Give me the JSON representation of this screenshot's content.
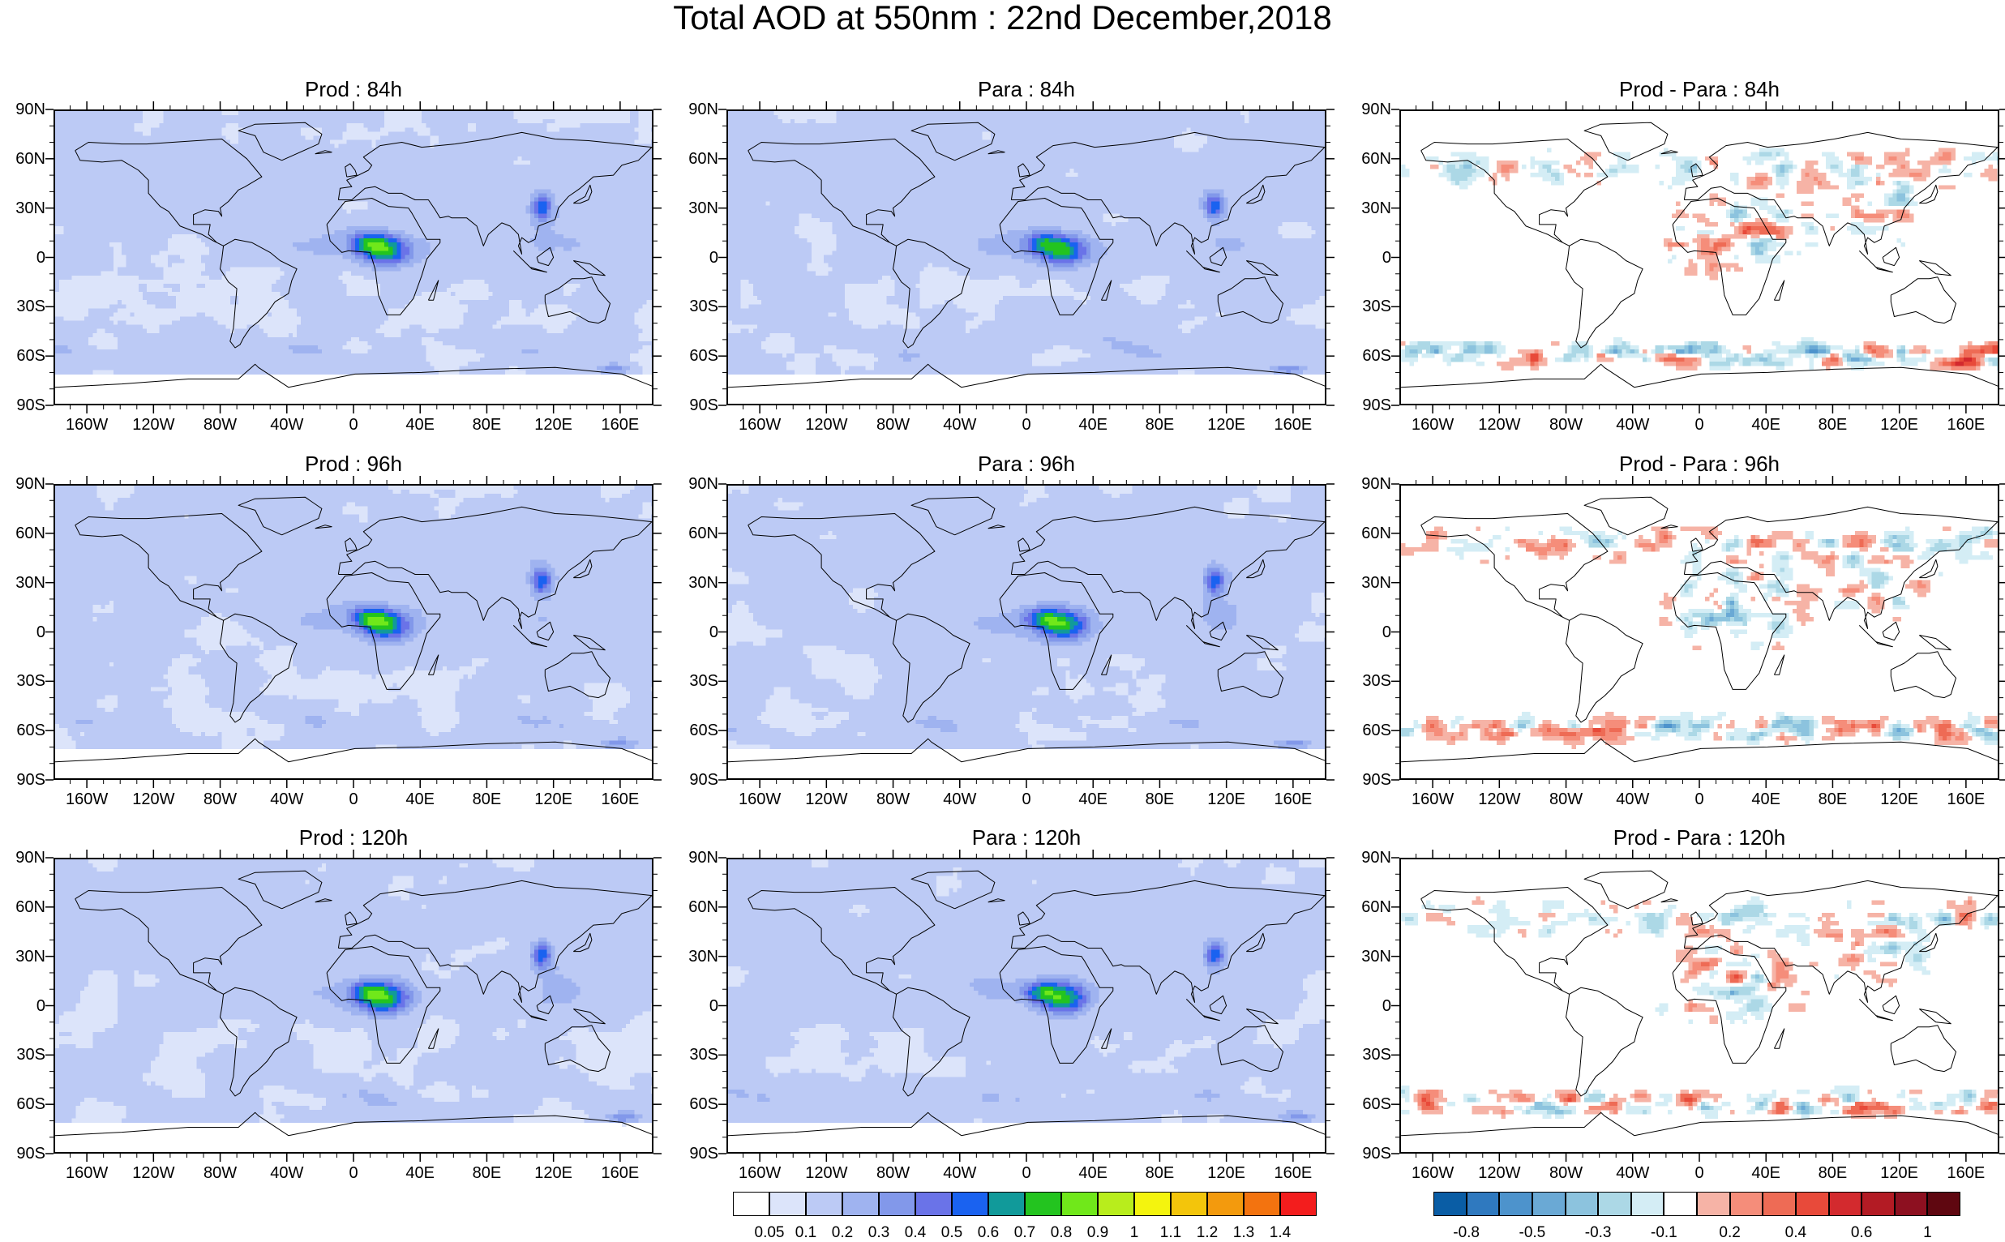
{
  "title": "Total AOD at 550nm : 22nd December,2018",
  "lat_labels": [
    "90N",
    "60N",
    "30N",
    "0",
    "30S",
    "60S",
    "90S"
  ],
  "lon_labels": [
    "160W",
    "120W",
    "80W",
    "40W",
    "0",
    "40E",
    "80E",
    "120E",
    "160E"
  ],
  "panels": [
    {
      "title": "Prod : 84h",
      "kind": "aod",
      "variant": 0,
      "row": 0,
      "col": 0
    },
    {
      "title": "Para : 84h",
      "kind": "aod",
      "variant": 1,
      "row": 0,
      "col": 1
    },
    {
      "title": "Prod - Para : 84h",
      "kind": "diff",
      "variant": 2,
      "row": 0,
      "col": 2
    },
    {
      "title": "Prod : 96h",
      "kind": "aod",
      "variant": 3,
      "row": 1,
      "col": 0
    },
    {
      "title": "Para : 96h",
      "kind": "aod",
      "variant": 4,
      "row": 1,
      "col": 1
    },
    {
      "title": "Prod - Para : 96h",
      "kind": "diff",
      "variant": 5,
      "row": 1,
      "col": 2
    },
    {
      "title": "Prod : 120h",
      "kind": "aod",
      "variant": 6,
      "row": 2,
      "col": 0
    },
    {
      "title": "Para : 120h",
      "kind": "aod",
      "variant": 7,
      "row": 2,
      "col": 1
    },
    {
      "title": "Prod - Para : 120h",
      "kind": "diff",
      "variant": 8,
      "row": 2,
      "col": 2
    }
  ],
  "colorbars": {
    "aod": {
      "colors": [
        "#ffffff",
        "#dce4fa",
        "#bccaf5",
        "#9fb3f0",
        "#8298ea",
        "#6a73e8",
        "#1a62f0",
        "#119a9a",
        "#23c41f",
        "#70e81a",
        "#b8ed1c",
        "#f4f40e",
        "#f3c50b",
        "#f39a0d",
        "#f3730f",
        "#f31d1d"
      ],
      "labels": [
        "0.05",
        "0.1",
        "0.2",
        "0.3",
        "0.4",
        "0.5",
        "0.6",
        "0.7",
        "0.8",
        "0.9",
        "1",
        "1.1",
        "1.2",
        "1.3",
        "1.4"
      ]
    },
    "diff": {
      "colors": [
        "#0a5da5",
        "#2f79bf",
        "#4d93cc",
        "#6aa9d5",
        "#8cc3de",
        "#acd8e6",
        "#d4edf5",
        "#ffffff",
        "#f6b3a6",
        "#f58d7a",
        "#ee6b55",
        "#e84a3a",
        "#d32a2e",
        "#b31b24",
        "#8d1020",
        "#5f0710"
      ],
      "labels": [
        "-0.8",
        "-0.5",
        "-0.3",
        "-0.1",
        "0.2",
        "0.4",
        "0.6",
        "1"
      ]
    }
  }
}
